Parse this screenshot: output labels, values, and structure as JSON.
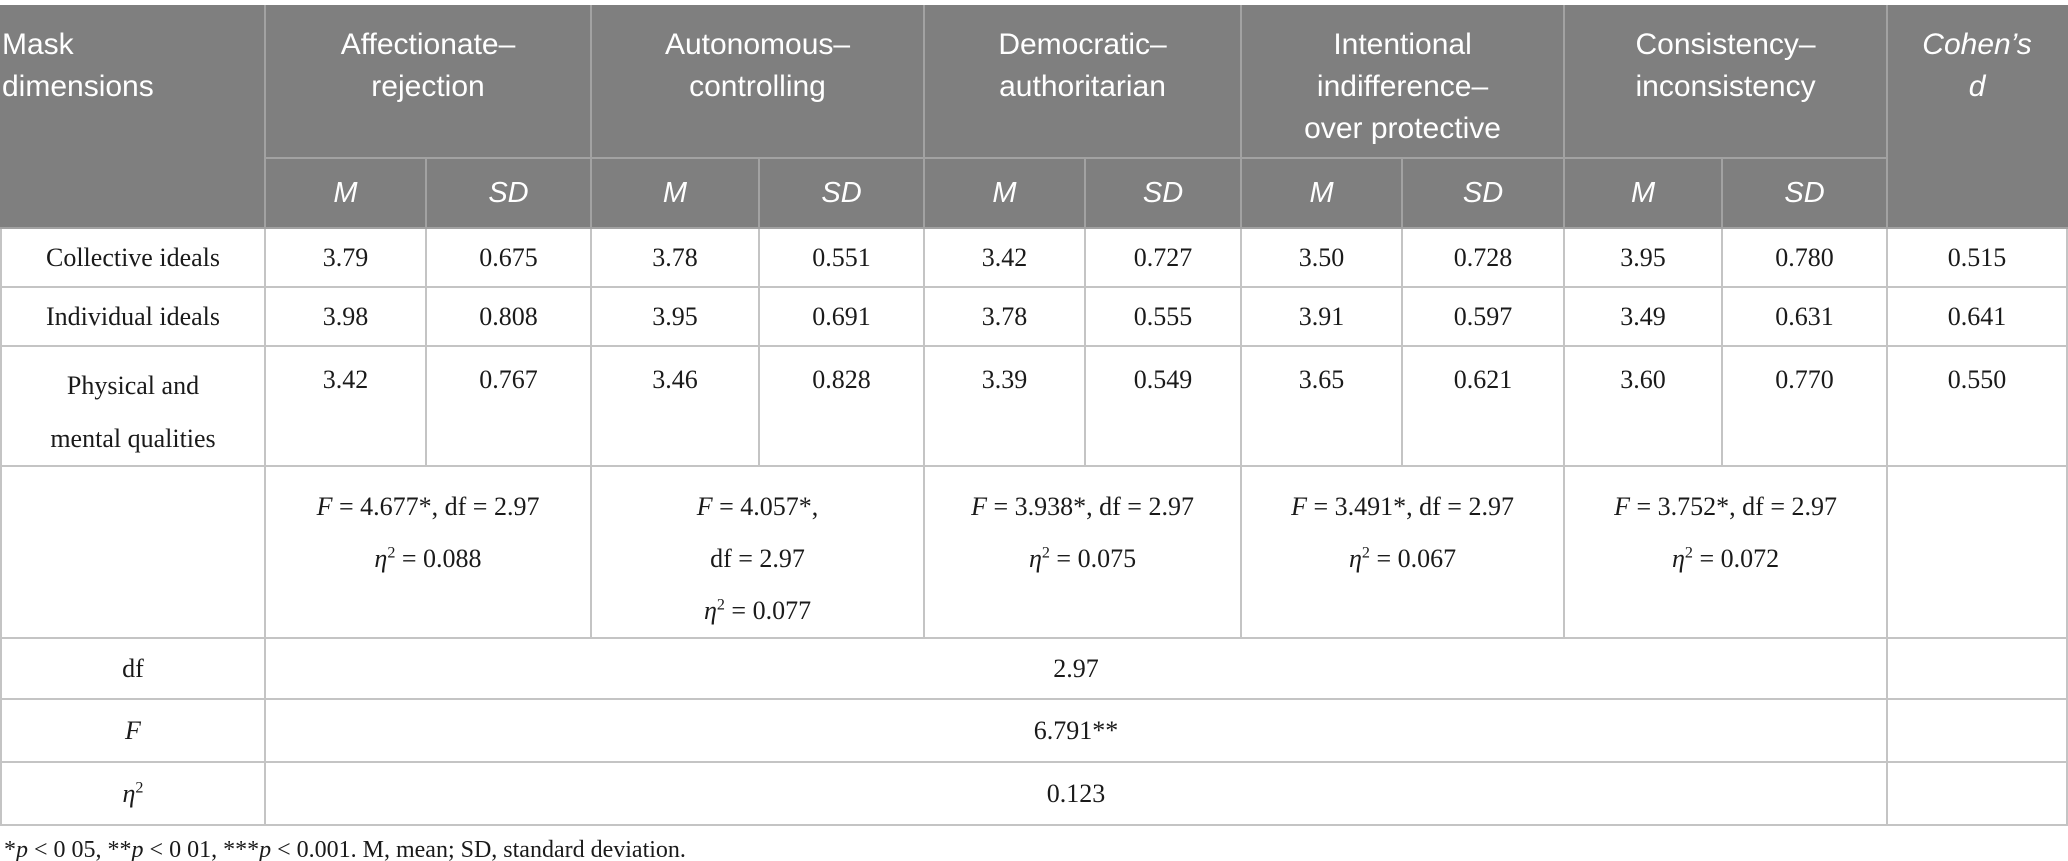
{
  "table": {
    "corner_label": "Mask<br>dimensions",
    "groups": [
      "Affectionate&#8211;<br>rejection",
      "Autonomous&#8211;<br>controlling",
      "Democratic&#8211;<br>authoritarian",
      "Intentional<br>indifference&#8211;<br>over protective",
      "Consistency&#8211;<br>inconsistency"
    ],
    "stat_labels": {
      "m": "M",
      "sd": "SD"
    },
    "cohens_label": "Cohen&#8217;s<br>d",
    "rows": [
      {
        "label": "Collective ideals",
        "values": [
          "3.79",
          "0.675",
          "3.78",
          "0.551",
          "3.42",
          "0.727",
          "3.50",
          "0.728",
          "3.95",
          "0.780"
        ],
        "cohens_d": "0.515"
      },
      {
        "label": "Individual ideals",
        "values": [
          "3.98",
          "0.808",
          "3.95",
          "0.691",
          "3.78",
          "0.555",
          "3.91",
          "0.597",
          "3.49",
          "0.631"
        ],
        "cohens_d": "0.641"
      },
      {
        "label": "Physical and<br>mental qualities",
        "values": [
          "3.42",
          "0.767",
          "3.46",
          "0.828",
          "3.39",
          "0.549",
          "3.65",
          "0.621",
          "3.60",
          "0.770"
        ],
        "cohens_d": "0.550"
      }
    ],
    "anova": [
      {
        "lines": [
          "<i>F</i> = 4.677*, df = 2.97",
          "<i>η</i><sup>2</sup> = 0.088",
          ""
        ]
      },
      {
        "lines": [
          "<i>F</i> = 4.057*,",
          "df = 2.97",
          "<i>η</i><sup>2</sup> = 0.077"
        ]
      },
      {
        "lines": [
          "<i>F</i> = 3.938*, df = 2.97",
          "<i>η</i><sup>2</sup> = 0.075",
          ""
        ]
      },
      {
        "lines": [
          "<i>F</i> = 3.491*, df = 2.97",
          "<i>η</i><sup>2</sup> = 0.067",
          ""
        ]
      },
      {
        "lines": [
          "<i>F</i> = 3.752*, df = 2.97",
          "<i>η</i><sup>2</sup> = 0.072",
          ""
        ]
      }
    ],
    "summary": [
      {
        "label": "df",
        "value": "2.97"
      },
      {
        "label": "<i>F</i>",
        "value": "6.791**"
      },
      {
        "label": "<i>η</i><sup>2</sup>",
        "value": "0.123"
      }
    ]
  },
  "footnote": "*<i>p</i> &lt; 0 05, **<i>p</i> &lt; 0 01, ***<i>p</i> &lt; 0.001. M, mean; SD, standard deviation.",
  "colors": {
    "header_bg": "#7f7f7f",
    "header_text": "#ffffff",
    "body_text": "#1a1a1a",
    "body_border": "#c4c4c4",
    "header_border": "#a2a2a2"
  }
}
